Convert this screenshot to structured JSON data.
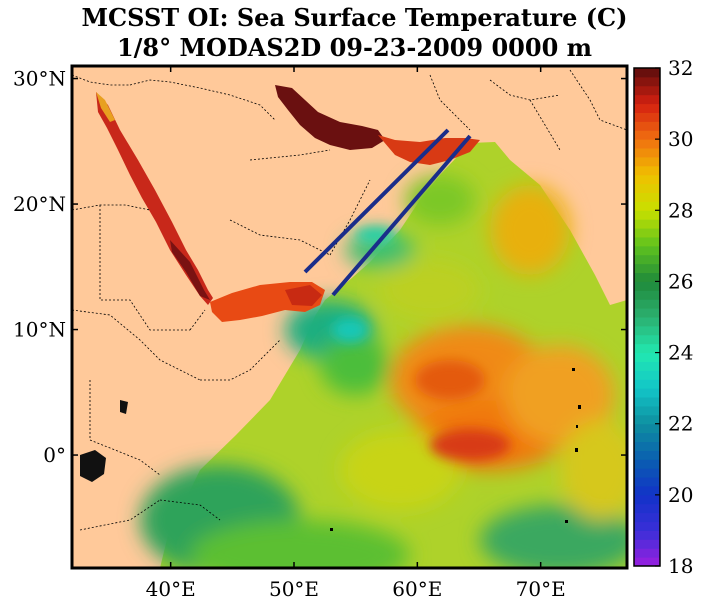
{
  "title": {
    "line1": "MCSST OI:  Sea Surface Temperature (C)",
    "line2": "1/8° MODAS2D 09-23-2009 0000 m"
  },
  "map": {
    "lat_ticks": [
      {
        "value": 30,
        "label": "30°N"
      },
      {
        "value": 20,
        "label": "20°N"
      },
      {
        "value": 10,
        "label": "10°N"
      },
      {
        "value": 0,
        "label": "0°"
      }
    ],
    "lon_ticks": [
      {
        "value": 40,
        "label": "40°E"
      },
      {
        "value": 50,
        "label": "50°E"
      },
      {
        "value": 60,
        "label": "60°E"
      },
      {
        "value": 70,
        "label": "70°E"
      }
    ],
    "lon_range": [
      32,
      77
    ],
    "lat_range": [
      -9,
      31
    ],
    "land_color": "#ffc99a",
    "section_line_color": "#1a2d8a"
  },
  "colorbar": {
    "min": 18,
    "max": 32,
    "labels": [
      {
        "value": 32,
        "label": "32"
      },
      {
        "value": 30,
        "label": "30"
      },
      {
        "value": 28,
        "label": "28"
      },
      {
        "value": 26,
        "label": "26"
      },
      {
        "value": 24,
        "label": "24"
      },
      {
        "value": 22,
        "label": "22"
      },
      {
        "value": 20,
        "label": "20"
      },
      {
        "value": 18,
        "label": "18"
      }
    ],
    "stops": [
      {
        "value": 18,
        "color": "#9b1fe0"
      },
      {
        "value": 19,
        "color": "#3a2fd8"
      },
      {
        "value": 20,
        "color": "#1232c8"
      },
      {
        "value": 21,
        "color": "#0a5fb0"
      },
      {
        "value": 22,
        "color": "#0f8fa0"
      },
      {
        "value": 23,
        "color": "#12c6c8"
      },
      {
        "value": 24,
        "color": "#22e8b0"
      },
      {
        "value": 25,
        "color": "#2bb070"
      },
      {
        "value": 26,
        "color": "#1f8a3a"
      },
      {
        "value": 27,
        "color": "#5fc21e"
      },
      {
        "value": 28,
        "color": "#c8e000"
      },
      {
        "value": 29,
        "color": "#f0c000"
      },
      {
        "value": 30,
        "color": "#f07010"
      },
      {
        "value": 31,
        "color": "#d42010"
      },
      {
        "value": 32,
        "color": "#5a0d0d"
      }
    ]
  }
}
